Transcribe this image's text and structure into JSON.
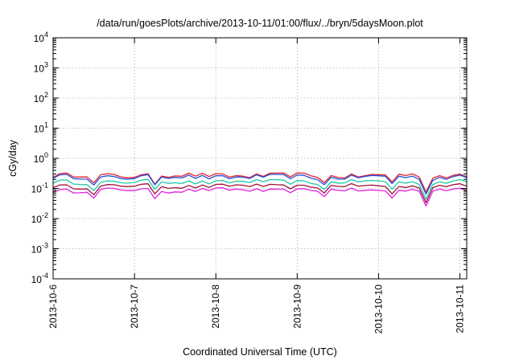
{
  "chart_data": {
    "type": "line",
    "title": "/data/run/goesPlots/archive/2013-10-11/01:00/flux/../bryn/5daysMoon.plot",
    "xlabel": "Coordinated Universal Time (UTC)",
    "ylabel": "cGy/day",
    "yscale": "log",
    "ylim": [
      0.0001,
      10000
    ],
    "xlim": [
      "2013-10-06",
      "2013-10-11 02:00"
    ],
    "grid": true,
    "legend": "none",
    "x_ticks": [
      "2013-10-6",
      "2013-10-7",
      "2013-10-8",
      "2013-10-9",
      "2013-10-10",
      "2013-10-11"
    ],
    "y_ticks": [
      {
        "base": "10",
        "exp": "-4",
        "value": 0.0001
      },
      {
        "base": "10",
        "exp": "-3",
        "value": 0.001
      },
      {
        "base": "10",
        "exp": "-2",
        "value": 0.01
      },
      {
        "base": "10",
        "exp": "-1",
        "value": 0.1
      },
      {
        "base": "10",
        "exp": "0",
        "value": 1
      },
      {
        "base": "10",
        "exp": "1",
        "value": 10
      },
      {
        "base": "10",
        "exp": "2",
        "value": 100
      },
      {
        "base": "10",
        "exp": "3",
        "value": 1000
      },
      {
        "base": "10",
        "exp": "4",
        "value": 10000
      }
    ],
    "sample_step_hours": 2,
    "series": [
      {
        "color": "#e8202a",
        "base": 0.27,
        "amp": 0.18
      },
      {
        "color": "#2050e0",
        "base": 0.24,
        "amp": 0.18
      },
      {
        "color": "#20c8a8",
        "base": 0.165,
        "amp": 0.16
      },
      {
        "color": "#a01040",
        "base": 0.12,
        "amp": 0.15
      },
      {
        "color": "#e020e0",
        "base": 0.088,
        "amp": 0.15
      }
    ],
    "dips": [
      {
        "hour": 12,
        "factor": 0.5
      },
      {
        "hour": 30,
        "factor": 0.6
      },
      {
        "hour": 80,
        "factor": 0.55
      },
      {
        "hour": 100,
        "factor": 0.6
      },
      {
        "hour": 110,
        "factor": 0.28
      }
    ]
  }
}
